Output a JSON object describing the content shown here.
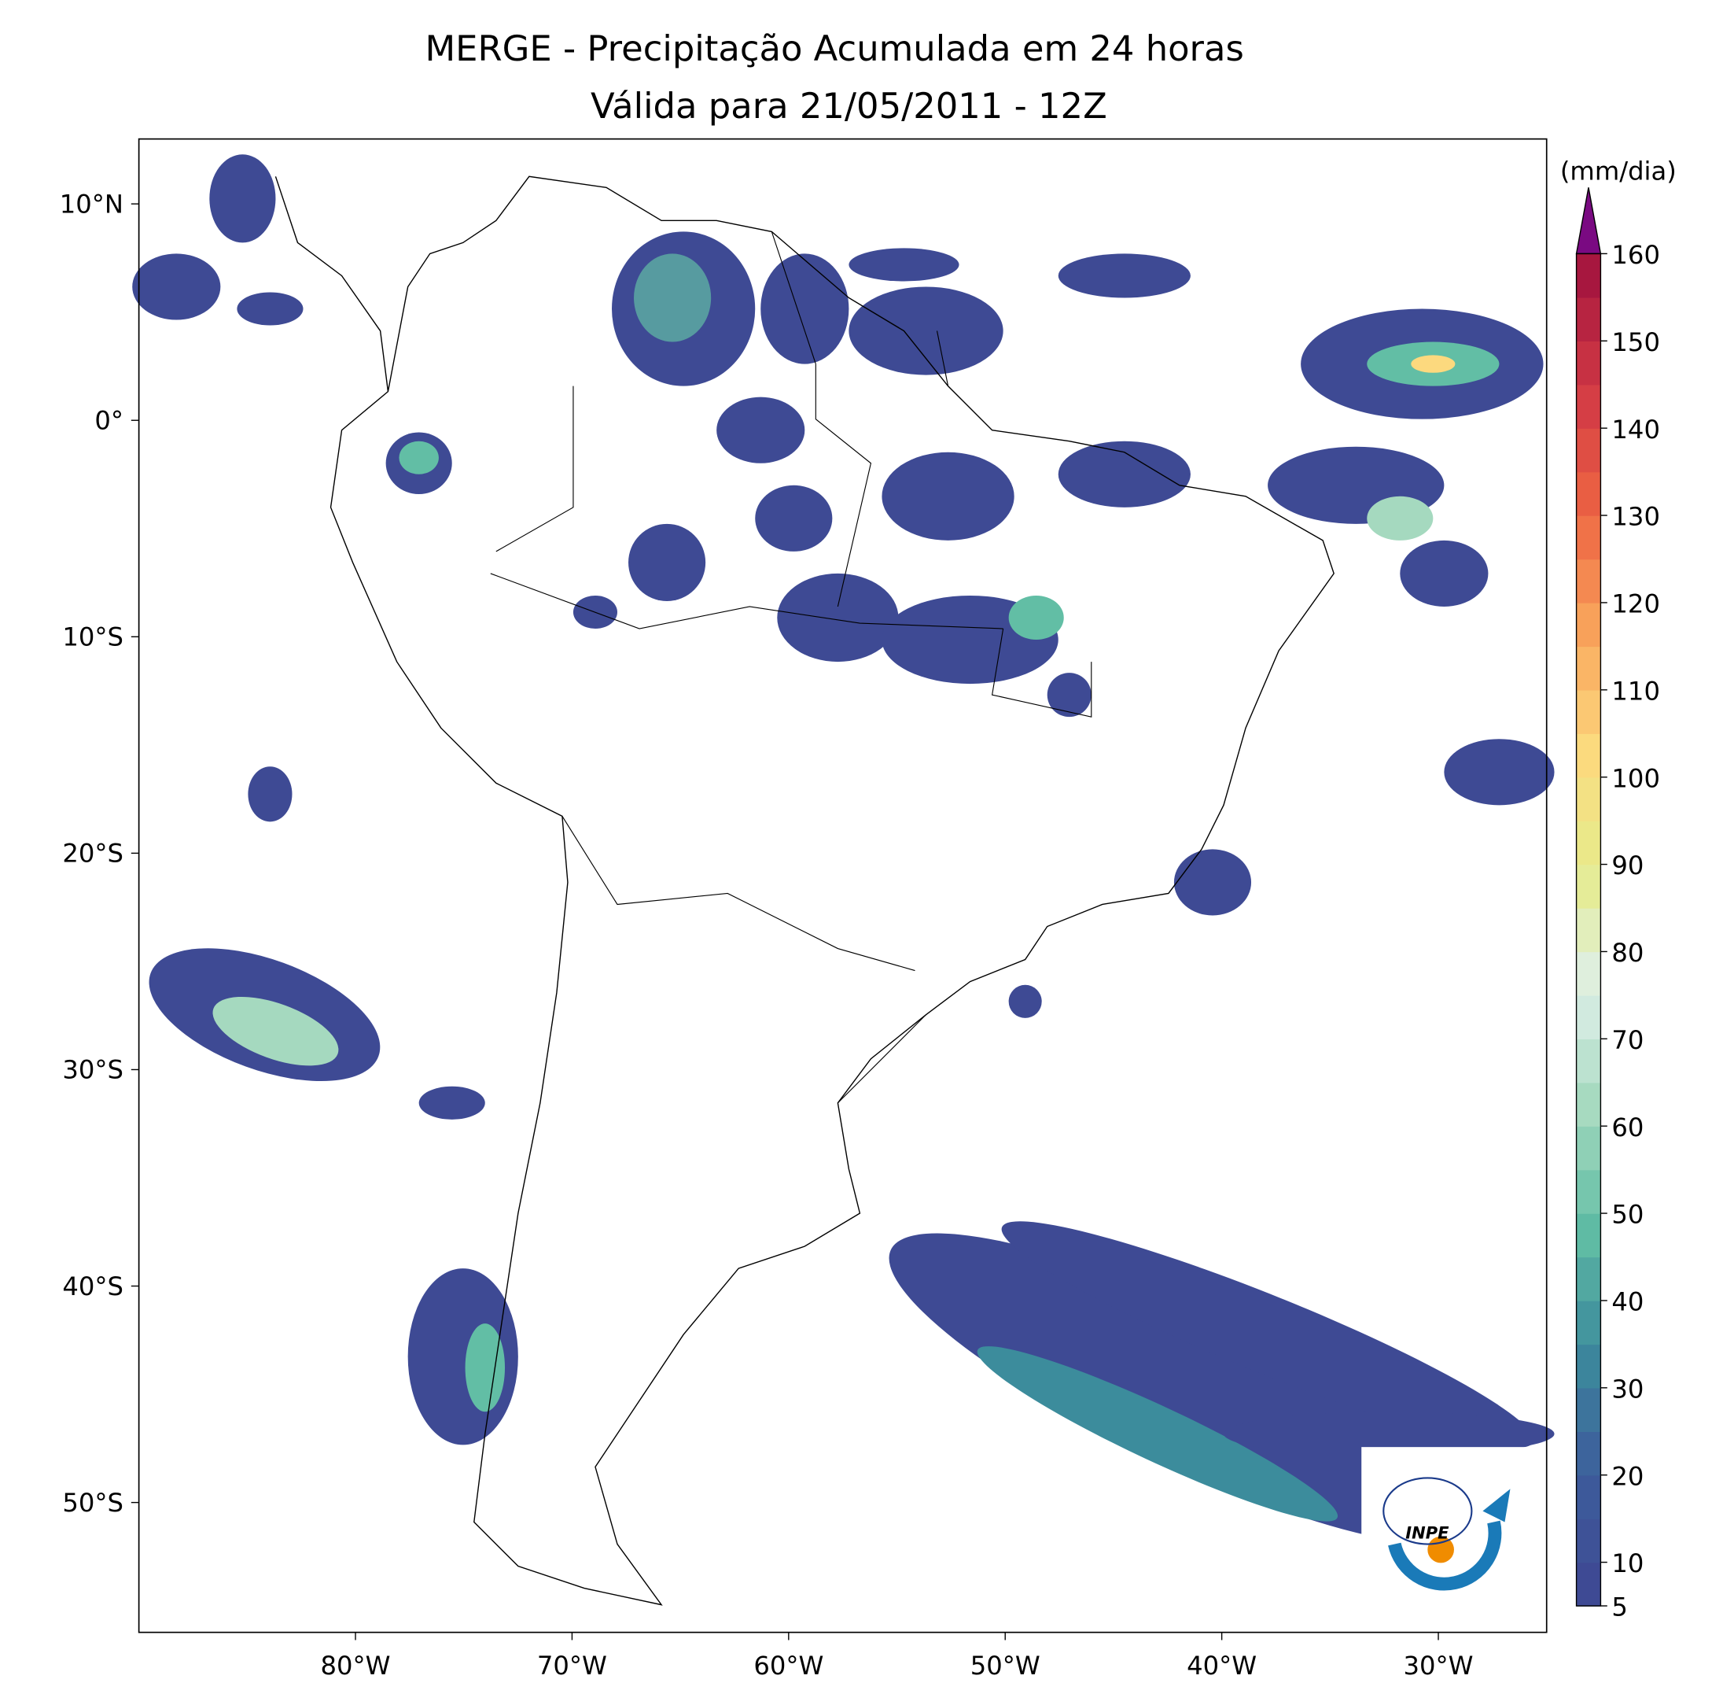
{
  "chart_data": {
    "type": "map",
    "title": "MERGE - Precipitação Acumulada em 24 horas",
    "subtitle": "Válida para 21/05/2011 - 12Z",
    "xlim": [
      -90,
      -25
    ],
    "xticks": [
      {
        "value": -80,
        "label": "80°W"
      },
      {
        "value": -70,
        "label": "70°W"
      },
      {
        "value": -60,
        "label": "60°W"
      },
      {
        "value": -50,
        "label": "50°W"
      },
      {
        "value": -40,
        "label": "40°W"
      },
      {
        "value": -30,
        "label": "30°W"
      }
    ],
    "ylim": [
      -56,
      13
    ],
    "yticks": [
      {
        "value": 10,
        "label": "10°N"
      },
      {
        "value": 0,
        "label": "0°"
      },
      {
        "value": -10,
        "label": "10°S"
      },
      {
        "value": -20,
        "label": "20°S"
      },
      {
        "value": -30,
        "label": "30°S"
      },
      {
        "value": -40,
        "label": "40°S"
      },
      {
        "value": -50,
        "label": "50°S"
      }
    ],
    "colorbar": {
      "label": "(mm/dia)",
      "lim": [
        5,
        160
      ],
      "ticks": [
        5,
        10,
        20,
        30,
        40,
        50,
        60,
        70,
        80,
        90,
        100,
        110,
        120,
        130,
        140,
        150,
        160
      ],
      "colors": [
        "#3e4a94",
        "#3d5f9c",
        "#3c8c9c",
        "#62bea5",
        "#a5d9bf",
        "#deefe9",
        "#e6ec8c",
        "#fcd97e",
        "#f9a55c",
        "#ee6543",
        "#d23a45",
        "#a7173f"
      ],
      "extend_color": "#7a0a82"
    },
    "logo_text": "INPE"
  }
}
